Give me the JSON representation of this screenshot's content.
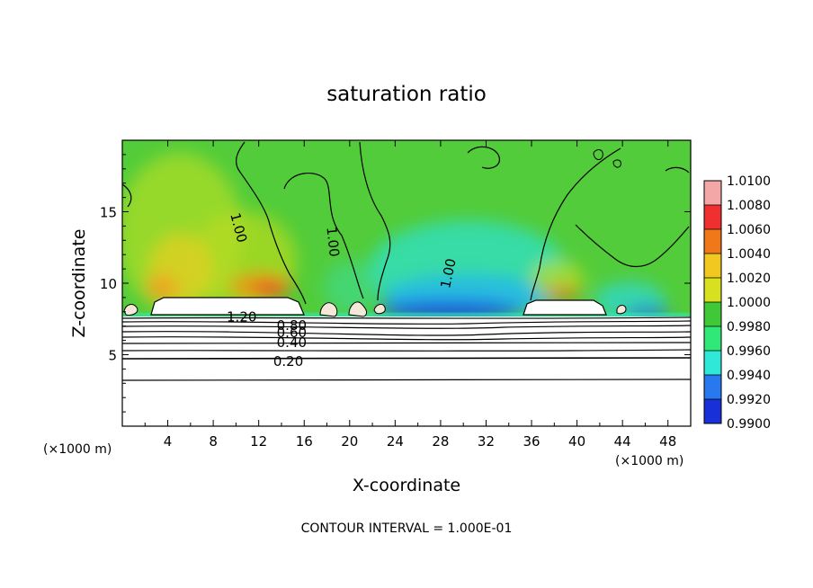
{
  "chart_data": {
    "type": "heatmap",
    "title": "saturation ratio",
    "xlabel": "X-coordinate",
    "ylabel": "Z-coordinate",
    "x_unit": "(×1000 m)",
    "z_unit": "(×1000 m)",
    "xlim": [
      0,
      50
    ],
    "ylim": [
      0,
      20
    ],
    "x_ticks": [
      4,
      8,
      12,
      16,
      20,
      24,
      28,
      32,
      36,
      40,
      44,
      48
    ],
    "y_ticks": [
      5,
      10,
      15
    ],
    "colorbar": {
      "labels": [
        "1.0100",
        "1.0080",
        "1.0060",
        "1.0040",
        "1.0020",
        "1.0000",
        "0.9980",
        "0.9960",
        "0.9940",
        "0.9920",
        "0.9900"
      ],
      "colors": [
        "#f4a7a7",
        "#f03030",
        "#f07818",
        "#f0c820",
        "#d8e020",
        "#40c838",
        "#30e878",
        "#30e8d8",
        "#2878f0",
        "#1830d8",
        "#5018a0"
      ]
    },
    "contour_labels": [
      {
        "text": "1.00",
        "x": 10.3,
        "z": 13.9,
        "rot": 75
      },
      {
        "text": "1.00",
        "x": 18.6,
        "z": 12.9,
        "rot": 84
      },
      {
        "text": "1.00",
        "x": 28.6,
        "z": 10.7,
        "rot": -78
      },
      {
        "text": "1.20",
        "x": 10.5,
        "z": 7.7,
        "rot": 0
      },
      {
        "text": "0.80",
        "x": 14.9,
        "z": 7.1,
        "rot": 0
      },
      {
        "text": "0.60",
        "x": 14.9,
        "z": 6.6,
        "rot": 0
      },
      {
        "text": "0.40",
        "x": 14.9,
        "z": 5.9,
        "rot": 0
      },
      {
        "text": "0.20",
        "x": 14.6,
        "z": 4.6,
        "rot": 0
      }
    ],
    "note": "CONTOUR INTERVAL = 1.000E-01"
  }
}
